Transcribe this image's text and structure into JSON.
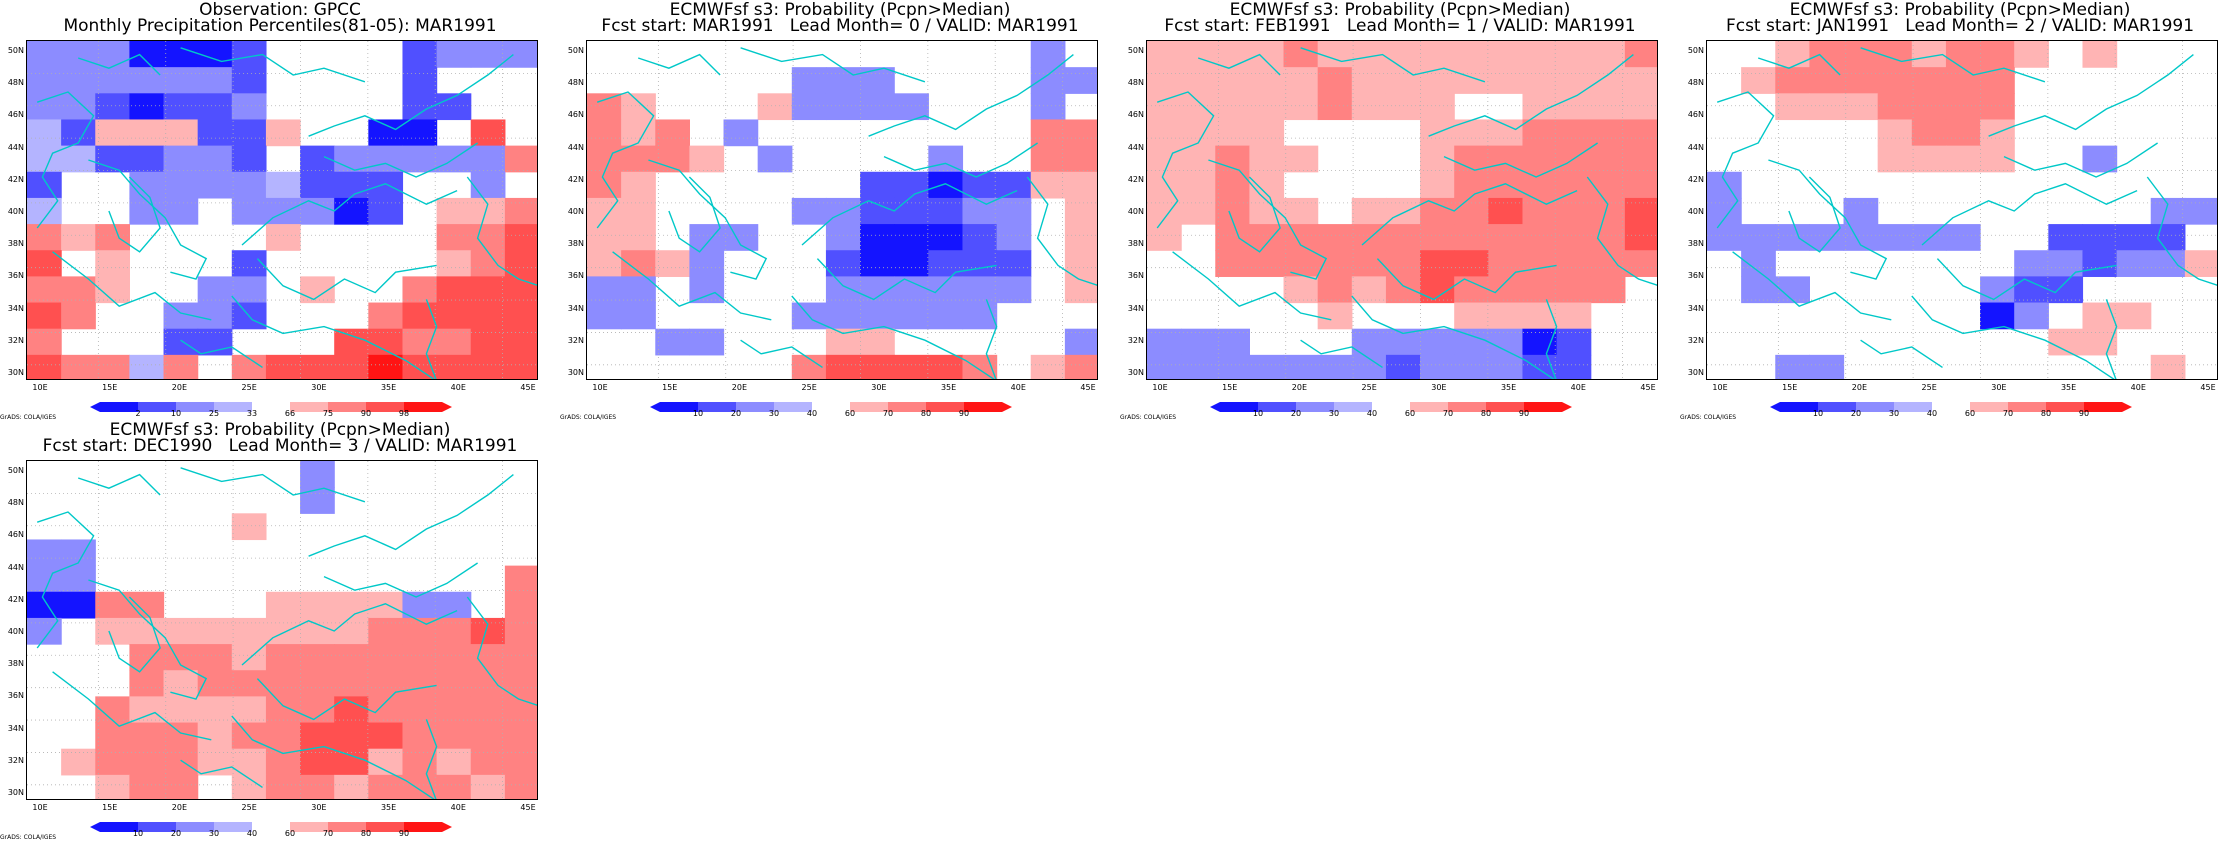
{
  "panels": [
    {
      "title_line1": "Observation: GPCC",
      "title_line2": "Monthly Precipitation Percentiles(81-05): MAR1991",
      "colorbar_labels": [
        "2",
        "10",
        "25",
        "33",
        "66",
        "75",
        "90",
        "98"
      ],
      "colorbar_type": "percentile",
      "grid": [
        [
          3,
          3,
          3,
          1,
          1,
          1,
          2,
          0,
          0,
          0,
          0,
          2,
          3,
          3,
          3
        ],
        [
          3,
          3,
          3,
          3,
          3,
          3,
          2,
          0,
          0,
          0,
          0,
          2,
          0,
          0,
          0
        ],
        [
          3,
          3,
          2,
          1,
          2,
          2,
          3,
          0,
          0,
          0,
          0,
          2,
          2,
          0,
          0
        ],
        [
          4,
          2,
          5,
          5,
          5,
          2,
          2,
          5,
          0,
          0,
          1,
          1,
          0,
          7,
          0
        ],
        [
          4,
          4,
          2,
          2,
          3,
          3,
          2,
          0,
          2,
          3,
          3,
          3,
          3,
          3,
          6
        ],
        [
          2,
          0,
          0,
          3,
          3,
          3,
          3,
          4,
          2,
          2,
          2,
          0,
          0,
          3,
          0
        ],
        [
          4,
          0,
          0,
          3,
          3,
          0,
          3,
          3,
          3,
          1,
          2,
          0,
          5,
          5,
          6
        ],
        [
          6,
          5,
          6,
          0,
          0,
          0,
          0,
          5,
          0,
          0,
          0,
          0,
          6,
          6,
          7
        ],
        [
          7,
          0,
          5,
          0,
          0,
          0,
          2,
          0,
          0,
          0,
          0,
          0,
          5,
          6,
          7
        ],
        [
          6,
          6,
          5,
          0,
          0,
          3,
          3,
          0,
          5,
          0,
          0,
          6,
          7,
          7,
          7
        ],
        [
          7,
          6,
          0,
          0,
          3,
          3,
          2,
          0,
          0,
          0,
          6,
          7,
          7,
          7,
          7
        ],
        [
          6,
          0,
          0,
          0,
          2,
          2,
          0,
          0,
          0,
          7,
          7,
          6,
          6,
          7,
          7
        ],
        [
          7,
          6,
          6,
          4,
          6,
          0,
          6,
          7,
          7,
          7,
          8,
          7,
          7,
          7,
          7
        ]
      ]
    },
    {
      "title_line1": "ECMWFsf s3: Probability (Pcpn>Median)",
      "title_line2": "Fcst start: MAR1991   Lead Month= 0 / VALID: MAR1991",
      "colorbar_labels": [
        "10",
        "20",
        "30",
        "40",
        "60",
        "70",
        "80",
        "90"
      ],
      "colorbar_type": "probability",
      "grid": [
        [
          0,
          0,
          0,
          0,
          0,
          0,
          0,
          0,
          0,
          0,
          0,
          0,
          0,
          3,
          0
        ],
        [
          0,
          0,
          0,
          0,
          0,
          0,
          3,
          3,
          3,
          0,
          0,
          0,
          0,
          3,
          3
        ],
        [
          6,
          5,
          0,
          0,
          0,
          5,
          3,
          3,
          3,
          3,
          0,
          0,
          0,
          3,
          0
        ],
        [
          6,
          5,
          6,
          0,
          3,
          0,
          0,
          0,
          0,
          0,
          0,
          0,
          0,
          6,
          6
        ],
        [
          6,
          6,
          6,
          5,
          0,
          3,
          0,
          0,
          0,
          0,
          3,
          0,
          0,
          6,
          6
        ],
        [
          6,
          5,
          0,
          0,
          0,
          0,
          0,
          0,
          2,
          2,
          1,
          2,
          2,
          5,
          5
        ],
        [
          5,
          5,
          0,
          0,
          0,
          0,
          3,
          3,
          2,
          2,
          2,
          3,
          3,
          0,
          5
        ],
        [
          5,
          5,
          0,
          3,
          3,
          0,
          0,
          3,
          1,
          1,
          1,
          2,
          3,
          0,
          5
        ],
        [
          5,
          6,
          5,
          3,
          0,
          0,
          0,
          2,
          1,
          1,
          2,
          2,
          2,
          0,
          5
        ],
        [
          3,
          3,
          0,
          3,
          0,
          0,
          0,
          3,
          3,
          3,
          3,
          3,
          3,
          0,
          5
        ],
        [
          3,
          3,
          0,
          0,
          0,
          0,
          3,
          3,
          3,
          3,
          3,
          3,
          0,
          0,
          0
        ],
        [
          0,
          0,
          3,
          3,
          0,
          0,
          0,
          5,
          5,
          0,
          0,
          0,
          0,
          0,
          3
        ],
        [
          0,
          0,
          0,
          0,
          0,
          0,
          6,
          7,
          7,
          7,
          7,
          6,
          0,
          5,
          6
        ]
      ]
    },
    {
      "title_line1": "ECMWFsf s3: Probability (Pcpn>Median)",
      "title_line2": "Fcst start: FEB1991   Lead Month= 1 / VALID: MAR1991",
      "colorbar_labels": [
        "10",
        "20",
        "30",
        "40",
        "60",
        "70",
        "80",
        "90"
      ],
      "colorbar_type": "probability",
      "grid": [
        [
          5,
          5,
          5,
          5,
          6,
          5,
          5,
          5,
          5,
          5,
          5,
          5,
          5,
          5,
          6
        ],
        [
          5,
          5,
          5,
          5,
          5,
          6,
          5,
          5,
          5,
          5,
          5,
          5,
          5,
          5,
          5
        ],
        [
          5,
          5,
          5,
          5,
          5,
          6,
          5,
          5,
          5,
          0,
          0,
          5,
          5,
          5,
          5
        ],
        [
          5,
          5,
          5,
          5,
          0,
          0,
          0,
          0,
          5,
          5,
          5,
          6,
          6,
          6,
          6
        ],
        [
          5,
          5,
          6,
          5,
          5,
          0,
          0,
          0,
          5,
          6,
          6,
          6,
          6,
          6,
          6
        ],
        [
          5,
          5,
          6,
          5,
          0,
          0,
          0,
          0,
          5,
          6,
          6,
          6,
          6,
          6,
          6
        ],
        [
          5,
          5,
          6,
          5,
          5,
          0,
          5,
          5,
          6,
          6,
          7,
          6,
          6,
          6,
          7
        ],
        [
          5,
          0,
          6,
          6,
          6,
          6,
          6,
          6,
          6,
          6,
          6,
          6,
          6,
          6,
          7
        ],
        [
          0,
          0,
          6,
          6,
          6,
          6,
          6,
          6,
          7,
          7,
          6,
          6,
          6,
          6,
          6
        ],
        [
          0,
          0,
          0,
          0,
          5,
          6,
          5,
          6,
          7,
          6,
          6,
          6,
          6,
          6,
          0
        ],
        [
          0,
          0,
          0,
          0,
          0,
          5,
          0,
          0,
          0,
          5,
          5,
          5,
          5,
          0,
          0
        ],
        [
          3,
          3,
          3,
          0,
          0,
          0,
          3,
          3,
          3,
          3,
          3,
          1,
          2,
          0,
          0
        ],
        [
          3,
          3,
          3,
          3,
          3,
          3,
          3,
          2,
          3,
          3,
          3,
          2,
          2,
          0,
          0
        ]
      ]
    },
    {
      "title_line1": "ECMWFsf s3: Probability (Pcpn>Median)",
      "title_line2": "Fcst start: JAN1991   Lead Month= 2 / VALID: MAR1991",
      "colorbar_labels": [
        "10",
        "20",
        "30",
        "40",
        "60",
        "70",
        "80",
        "90"
      ],
      "colorbar_type": "probability",
      "grid": [
        [
          0,
          0,
          5,
          6,
          6,
          6,
          5,
          6,
          6,
          5,
          0,
          5,
          0,
          0,
          0
        ],
        [
          0,
          5,
          6,
          6,
          6,
          6,
          6,
          6,
          6,
          0,
          0,
          0,
          0,
          0,
          0
        ],
        [
          0,
          0,
          5,
          5,
          5,
          6,
          6,
          6,
          6,
          0,
          0,
          0,
          0,
          0,
          0
        ],
        [
          0,
          0,
          0,
          0,
          0,
          5,
          6,
          6,
          5,
          0,
          0,
          0,
          0,
          0,
          0
        ],
        [
          0,
          0,
          0,
          0,
          0,
          5,
          5,
          5,
          5,
          0,
          0,
          3,
          0,
          0,
          0
        ],
        [
          3,
          0,
          0,
          0,
          0,
          0,
          0,
          0,
          0,
          0,
          0,
          0,
          0,
          0,
          0
        ],
        [
          3,
          0,
          0,
          0,
          3,
          0,
          0,
          0,
          0,
          0,
          0,
          0,
          0,
          3,
          3
        ],
        [
          3,
          3,
          3,
          3,
          3,
          3,
          3,
          3,
          0,
          0,
          2,
          2,
          2,
          2,
          0
        ],
        [
          0,
          3,
          0,
          0,
          0,
          0,
          0,
          0,
          0,
          3,
          3,
          2,
          3,
          3,
          5
        ],
        [
          0,
          3,
          3,
          0,
          0,
          0,
          0,
          0,
          3,
          2,
          2,
          0,
          0,
          0,
          0
        ],
        [
          0,
          0,
          0,
          0,
          0,
          0,
          0,
          0,
          1,
          3,
          0,
          5,
          5,
          0,
          0
        ],
        [
          0,
          0,
          0,
          0,
          0,
          0,
          0,
          0,
          0,
          0,
          5,
          5,
          0,
          0,
          0
        ],
        [
          0,
          0,
          3,
          3,
          0,
          0,
          0,
          0,
          0,
          0,
          0,
          0,
          0,
          5,
          0
        ]
      ]
    },
    {
      "title_line1": "ECMWFsf s3: Probability (Pcpn>Median)",
      "title_line2": "Fcst start: DEC1990   Lead Month= 3 / VALID: MAR1991",
      "colorbar_labels": [
        "10",
        "20",
        "30",
        "40",
        "60",
        "70",
        "80",
        "90"
      ],
      "colorbar_type": "probability",
      "grid": [
        [
          0,
          0,
          0,
          0,
          0,
          0,
          0,
          0,
          3,
          0,
          0,
          0,
          0,
          0,
          0
        ],
        [
          0,
          0,
          0,
          0,
          0,
          0,
          0,
          0,
          3,
          0,
          0,
          0,
          0,
          0,
          0
        ],
        [
          0,
          0,
          0,
          0,
          0,
          0,
          5,
          0,
          0,
          0,
          0,
          0,
          0,
          0,
          0
        ],
        [
          3,
          3,
          0,
          0,
          0,
          0,
          0,
          0,
          0,
          0,
          0,
          0,
          0,
          0,
          0
        ],
        [
          3,
          3,
          0,
          0,
          0,
          0,
          0,
          0,
          0,
          0,
          0,
          0,
          0,
          0,
          6
        ],
        [
          1,
          1,
          6,
          6,
          0,
          0,
          0,
          5,
          5,
          5,
          5,
          3,
          3,
          0,
          6
        ],
        [
          3,
          0,
          5,
          5,
          5,
          5,
          5,
          5,
          5,
          5,
          6,
          6,
          6,
          7,
          6
        ],
        [
          0,
          0,
          0,
          6,
          6,
          6,
          5,
          6,
          6,
          6,
          6,
          6,
          6,
          6,
          6
        ],
        [
          0,
          0,
          0,
          6,
          5,
          6,
          6,
          6,
          6,
          6,
          6,
          6,
          6,
          6,
          6
        ],
        [
          0,
          0,
          6,
          5,
          5,
          5,
          5,
          6,
          6,
          7,
          6,
          6,
          6,
          6,
          6
        ],
        [
          0,
          0,
          6,
          6,
          6,
          5,
          6,
          6,
          7,
          7,
          7,
          6,
          6,
          6,
          6
        ],
        [
          0,
          5,
          6,
          6,
          6,
          5,
          5,
          6,
          7,
          7,
          5,
          6,
          5,
          6,
          6
        ],
        [
          0,
          0,
          5,
          6,
          6,
          0,
          5,
          6,
          6,
          5,
          6,
          6,
          6,
          5,
          6
        ]
      ]
    }
  ],
  "lat_labels": [
    "50N",
    "48N",
    "46N",
    "44N",
    "42N",
    "40N",
    "38N",
    "36N",
    "34N",
    "32N",
    "30N"
  ],
  "lon_labels": [
    "10E",
    "15E",
    "20E",
    "25E",
    "30E",
    "35E",
    "40E",
    "45E"
  ],
  "credit": "GrADS: COLA/IGES",
  "colors": {
    "blue_scale": [
      "#1414ff",
      "#5050ff",
      "#8c8cff",
      "#b4b4ff"
    ],
    "red_scale": [
      "#ffb4b4",
      "#ff8282",
      "#ff5050",
      "#ff1414"
    ],
    "coast": "#00c8c8",
    "grid_dots": "#b0b0b0"
  }
}
